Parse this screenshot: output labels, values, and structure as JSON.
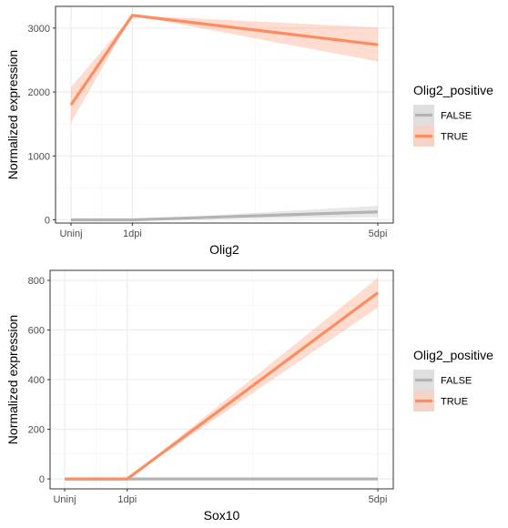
{
  "chart_data": [
    {
      "type": "line",
      "title": "",
      "xlabel": "Olig2",
      "ylabel": "Normalized expression",
      "x": [
        "Uninj",
        "1dpi",
        "5dpi"
      ],
      "x_days": [
        0,
        1,
        5
      ],
      "ylim": [
        -50,
        3340
      ],
      "yticks": [
        0,
        1000,
        2000,
        3000
      ],
      "grid": true,
      "legend_title": "Olig2_positive",
      "legend_position": "right",
      "series": [
        {
          "name": "FALSE",
          "color": "#b3b3b3",
          "values": [
            0,
            0,
            125
          ],
          "lower": [
            0,
            0,
            40
          ],
          "upper": [
            0,
            0,
            220
          ]
        },
        {
          "name": "TRUE",
          "color": "#fc8d62",
          "values": [
            1800,
            3200,
            2740
          ],
          "lower": [
            1520,
            3200,
            2480
          ],
          "upper": [
            2080,
            3200,
            3010
          ]
        }
      ]
    },
    {
      "type": "line",
      "title": "",
      "xlabel": "Sox10",
      "ylabel": "Normalized expression",
      "x": [
        "Uninj",
        "1dpi",
        "5dpi"
      ],
      "x_days": [
        0,
        1,
        5
      ],
      "ylim": [
        -40,
        840
      ],
      "yticks": [
        0,
        200,
        400,
        600,
        800
      ],
      "grid": true,
      "legend_title": "Olig2_positive",
      "legend_position": "right",
      "series": [
        {
          "name": "FALSE",
          "color": "#b3b3b3",
          "values": [
            0,
            0,
            0
          ],
          "lower": [
            0,
            0,
            0
          ],
          "upper": [
            0,
            0,
            0
          ]
        },
        {
          "name": "TRUE",
          "color": "#fc8d62",
          "values": [
            0,
            0,
            750
          ],
          "lower": [
            0,
            0,
            690
          ],
          "upper": [
            0,
            0,
            810
          ]
        }
      ]
    }
  ]
}
